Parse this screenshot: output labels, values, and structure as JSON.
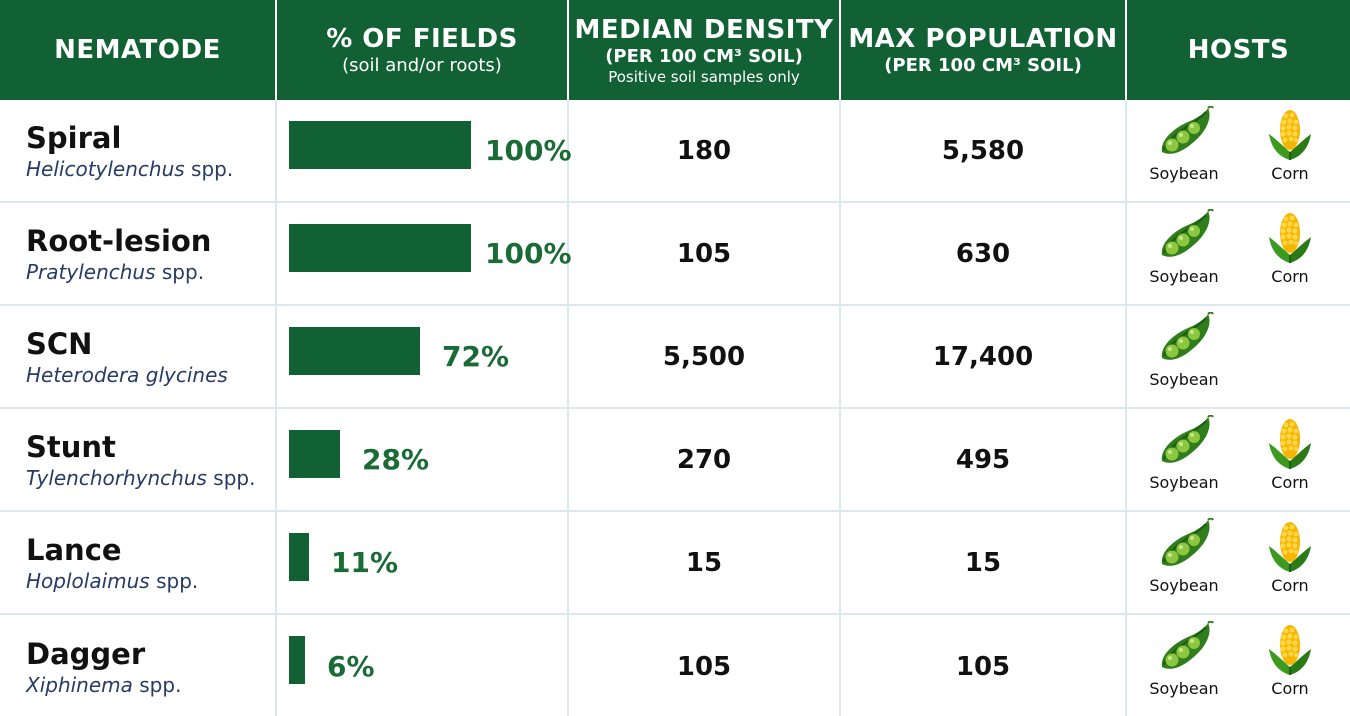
{
  "colors": {
    "header_bg": "#116134",
    "bar": "#116134",
    "pct_text": "#1a6b36",
    "latin_text": "#263b66",
    "grid": "#dce8ef"
  },
  "header": {
    "nematode": "NEMATODE",
    "fields_main": "% OF FIELDS",
    "fields_sub": "(soil and/or roots)",
    "median_main": "MEDIAN DENSITY",
    "median_sub": "(PER 100 CM³ SOIL)",
    "median_note": "Positive soil samples only",
    "max_main": "MAX POPULATION",
    "max_sub": "(PER 100 CM³ SOIL)",
    "hosts": "HOSTS"
  },
  "chart_data": {
    "type": "table",
    "columns": [
      "NEMATODE",
      "% OF FIELDS",
      "MEDIAN DENSITY",
      "MAX POPULATION",
      "HOSTS"
    ],
    "rows": [
      {
        "common": "Spiral",
        "genus": "Helicotylenchus",
        "suffix": " spp.",
        "pct": 100,
        "pct_label": "100%",
        "median": "180",
        "max": "5,580",
        "hosts": [
          "Soybean",
          "Corn"
        ]
      },
      {
        "common": "Root-lesion",
        "genus": "Pratylenchus",
        "suffix": " spp.",
        "pct": 100,
        "pct_label": "100%",
        "median": "105",
        "max": "630",
        "hosts": [
          "Soybean",
          "Corn"
        ]
      },
      {
        "common": "SCN",
        "genus": "Heterodera glycines",
        "suffix": "",
        "pct": 72,
        "pct_label": "72%",
        "median": "5,500",
        "max": "17,400",
        "hosts": [
          "Soybean"
        ]
      },
      {
        "common": "Stunt",
        "genus": "Tylenchorhynchus",
        "suffix": " spp.",
        "pct": 28,
        "pct_label": "28%",
        "median": "270",
        "max": "495",
        "hosts": [
          "Soybean",
          "Corn"
        ]
      },
      {
        "common": "Lance",
        "genus": "Hoplolaimus",
        "suffix": " spp.",
        "pct": 11,
        "pct_label": "11%",
        "median": "15",
        "max": "15",
        "hosts": [
          "Soybean",
          "Corn"
        ]
      },
      {
        "common": "Dagger",
        "genus": "Xiphinema",
        "suffix": " spp.",
        "pct": 6,
        "pct_label": "6%",
        "median": "105",
        "max": "105",
        "hosts": [
          "Soybean",
          "Corn"
        ]
      }
    ]
  },
  "icons": {
    "soybean": "soybean-pod-icon",
    "corn": "corn-cob-icon"
  }
}
